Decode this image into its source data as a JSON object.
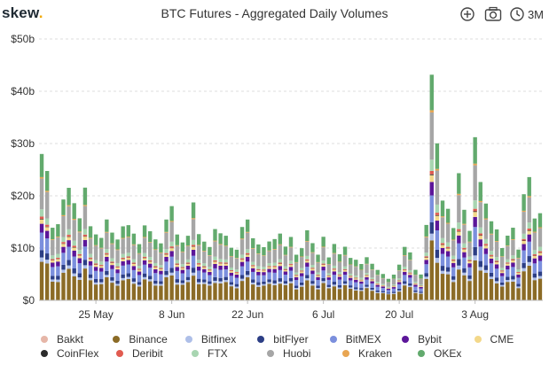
{
  "header": {
    "logo_text": "skew",
    "logo_dot": ".",
    "title": "BTC Futures - Aggregated Daily Volumes",
    "range_label": "3M",
    "icons": [
      "plus-circle-icon",
      "camera-icon",
      "clock-icon"
    ]
  },
  "chart_data": {
    "type": "bar",
    "stacked": true,
    "title": "BTC Futures - Aggregated Daily Volumes",
    "xlabel": "",
    "ylabel": "",
    "ylim": [
      0,
      50
    ],
    "y_unit": "billion USD",
    "y_ticks": [
      0,
      10,
      20,
      30,
      40,
      50
    ],
    "y_tick_labels": [
      "$0",
      "$10b",
      "$20b",
      "$30b",
      "$40b",
      "$50b"
    ],
    "x_tick_labels": [
      "25 May",
      "8 Jun",
      "22 Jun",
      "6 Jul",
      "20 Jul",
      "3 Aug"
    ],
    "x_tick_days": [
      10,
      24,
      38,
      52,
      66,
      80
    ],
    "grid": true,
    "legend_position": "bottom",
    "days": [
      "15 May",
      "16 May",
      "17 May",
      "18 May",
      "19 May",
      "20 May",
      "21 May",
      "22 May",
      "23 May",
      "24 May",
      "25 May",
      "26 May",
      "27 May",
      "28 May",
      "29 May",
      "30 May",
      "31 May",
      "1 Jun",
      "2 Jun",
      "3 Jun",
      "4 Jun",
      "5 Jun",
      "6 Jun",
      "7 Jun",
      "8 Jun",
      "9 Jun",
      "10 Jun",
      "11 Jun",
      "12 Jun",
      "13 Jun",
      "14 Jun",
      "15 Jun",
      "16 Jun",
      "17 Jun",
      "18 Jun",
      "19 Jun",
      "20 Jun",
      "21 Jun",
      "22 Jun",
      "23 Jun",
      "24 Jun",
      "25 Jun",
      "26 Jun",
      "27 Jun",
      "28 Jun",
      "29 Jun",
      "30 Jun",
      "1 Jul",
      "2 Jul",
      "3 Jul",
      "4 Jul",
      "5 Jul",
      "6 Jul",
      "7 Jul",
      "8 Jul",
      "9 Jul",
      "10 Jul",
      "11 Jul",
      "12 Jul",
      "13 Jul",
      "14 Jul",
      "15 Jul",
      "16 Jul",
      "17 Jul",
      "18 Jul",
      "19 Jul",
      "20 Jul",
      "21 Jul",
      "22 Jul",
      "23 Jul",
      "24 Jul",
      "25 Jul",
      "26 Jul",
      "27 Jul",
      "28 Jul",
      "29 Jul",
      "30 Jul",
      "31 Jul",
      "1 Aug",
      "2 Aug",
      "3 Aug",
      "4 Aug",
      "5 Aug",
      "6 Aug",
      "7 Aug",
      "8 Aug",
      "9 Aug",
      "10 Aug",
      "11 Aug",
      "12 Aug",
      "13 Aug",
      "14 Aug"
    ],
    "totals": [
      28,
      24,
      14,
      15,
      19,
      21,
      19,
      16,
      21,
      14,
      13,
      12,
      15,
      13,
      12,
      14,
      14,
      13,
      11,
      14,
      13,
      12,
      11,
      15,
      18,
      13,
      11,
      12,
      19,
      13,
      11,
      10,
      14,
      13,
      12,
      10,
      10,
      14,
      15,
      12,
      11,
      10,
      11,
      12,
      13,
      10,
      12,
      9,
      10,
      13,
      11,
      9,
      12,
      8,
      11,
      9,
      10,
      8,
      8,
      7,
      8,
      7,
      6,
      5,
      4,
      5,
      7,
      10,
      9,
      6,
      5,
      14,
      43,
      31,
      19,
      17,
      14,
      25,
      17,
      13,
      32,
      23,
      18,
      15,
      14,
      10,
      12,
      14,
      10,
      20,
      23,
      16,
      17
    ],
    "series": [
      {
        "name": "Bakkt",
        "color": "#e6b6a8",
        "share": 0.003
      },
      {
        "name": "Binance",
        "color": "#8b6b26",
        "share": 0.26
      },
      {
        "name": "Bitfinex",
        "color": "#aebfe8",
        "share": 0.03
      },
      {
        "name": "bitFlyer",
        "color": "#2c3e85",
        "share": 0.05
      },
      {
        "name": "BitMEX",
        "color": "#7b8fdd",
        "share": 0.12
      },
      {
        "name": "Bybit",
        "color": "#5c1699",
        "share": 0.06
      },
      {
        "name": "CME",
        "color": "#f3d88a",
        "share": 0.03
      },
      {
        "name": "CoinFlex",
        "color": "#2b2b2b",
        "share": 0.004
      },
      {
        "name": "Deribit",
        "color": "#e15b50",
        "share": 0.015
      },
      {
        "name": "FTX",
        "color": "#a8d5b1",
        "share": 0.05
      },
      {
        "name": "Huobi",
        "color": "#a6a6a6",
        "share": 0.21
      },
      {
        "name": "Kraken",
        "color": "#e8a552",
        "share": 0.01
      },
      {
        "name": "OKEx",
        "color": "#62aa6d",
        "share": 0.158
      }
    ]
  },
  "legend": {
    "rows": [
      [
        "Bakkt",
        "Binance",
        "Bitfinex",
        "bitFlyer",
        "BitMEX",
        "Bybit",
        "CME"
      ],
      [
        "CoinFlex",
        "Deribit",
        "FTX",
        "Huobi",
        "Kraken",
        "OKEx"
      ]
    ]
  }
}
